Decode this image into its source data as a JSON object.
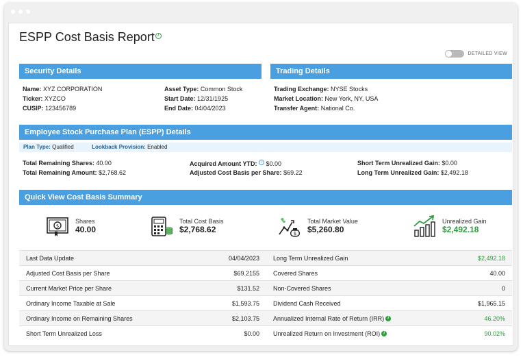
{
  "page": {
    "title": "ESPP Cost Basis Report",
    "detailed_view_label": "DETAILED VIEW",
    "detailed_view_on": false
  },
  "security": {
    "header": "Security Details",
    "name_label": "Name:",
    "name": "XYZ CORPORATION",
    "ticker_label": "Ticker:",
    "ticker": "XYZCO",
    "cusip_label": "CUSIP:",
    "cusip": "123456789",
    "asset_type_label": "Asset Type:",
    "asset_type": "Common Stock",
    "start_date_label": "Start Date:",
    "start_date": "12/31/1925",
    "end_date_label": "End Date:",
    "end_date": "04/04/2023"
  },
  "trading": {
    "header": "Trading Details",
    "exchange_label": "Trading Exchange:",
    "exchange": "NYSE Stocks",
    "location_label": "Market Location:",
    "location": "New York, NY, USA",
    "agent_label": "Transfer Agent:",
    "agent": "National Co."
  },
  "espp": {
    "header": "Employee Stock Purchase Plan (ESPP) Details",
    "plan_type_label": "Plan Type:",
    "plan_type": "Qualified",
    "lookback_label": "Lookback Provision:",
    "lookback": "Enabled",
    "total_shares_label": "Total Remaining Shares:",
    "total_shares": "40.00",
    "total_amount_label": "Total Remaining Amount:",
    "total_amount": "$2,768.62",
    "acquired_ytd_label": "Acquired Amount YTD:",
    "acquired_ytd": "$0.00",
    "adj_cost_label": "Adjusted Cost Basis per Share:",
    "adj_cost": "$69.22",
    "st_gain_label": "Short Term Unrealized Gain:",
    "st_gain": "$0.00",
    "lt_gain_label": "Long Term Unrealized Gain:",
    "lt_gain": "$2,492.18"
  },
  "summary": {
    "header": "Quick View Cost Basis Summary",
    "items": [
      {
        "label": "Shares",
        "value": "40.00",
        "icon": "certificate-icon"
      },
      {
        "label": "Total Cost Basis",
        "value": "$2,768.62",
        "icon": "calculator-icon"
      },
      {
        "label": "Total Market Value",
        "value": "$5,260.80",
        "icon": "money-growth-icon"
      },
      {
        "label": "Unrealized Gain",
        "value": "$2,492.18",
        "icon": "bar-chart-up-icon"
      }
    ]
  },
  "left_table": [
    {
      "label": "Last Data Update",
      "value": "04/04/2023"
    },
    {
      "label": "Adjusted Cost Basis per Share",
      "value": "$69.2155"
    },
    {
      "label": "Current Market Price per Share",
      "value": "$131.52"
    },
    {
      "label": "Ordinary Income Taxable at Sale",
      "value": "$1,593.75"
    },
    {
      "label": "Ordinary Income on Remaining Shares",
      "value": "$2,103.75"
    },
    {
      "label": "Short Term Unrealized Loss",
      "value": "$0.00"
    }
  ],
  "right_table": [
    {
      "label": "Long Term Unrealized Gain",
      "value": "$2,492.18"
    },
    {
      "label": "Covered Shares",
      "value": "40.00"
    },
    {
      "label": "Non-Covered Shares",
      "value": "0"
    },
    {
      "label": "Dividend Cash Received",
      "value": "$1,965.15"
    },
    {
      "label": "Annualized Internal Rate of Return (IRR)",
      "value": "46.20%"
    },
    {
      "label": "Unrealized Return on Investment (ROI)",
      "value": "90.02%"
    }
  ],
  "colors": {
    "accent": "#4a9fe0",
    "positive": "#2e9a3e"
  }
}
